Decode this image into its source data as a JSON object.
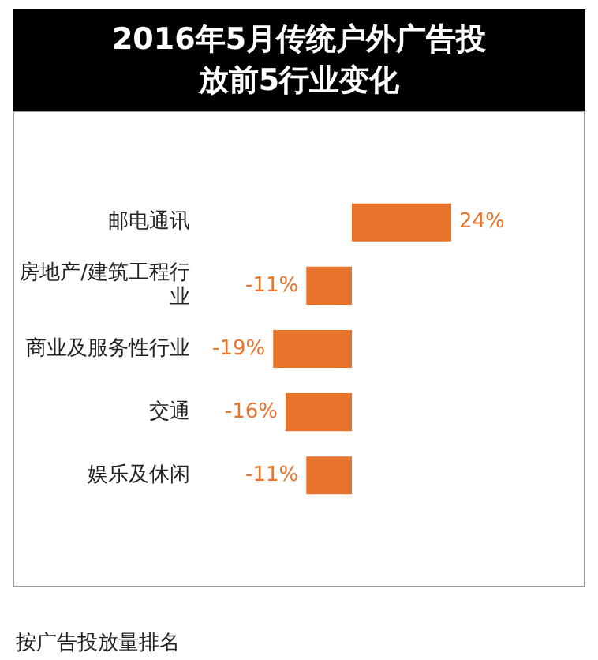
{
  "chart_data": {
    "type": "bar",
    "orientation": "horizontal",
    "title": "2016年5月传统户外广告投放前5行业变化",
    "categories": [
      "邮电通讯",
      "房地产/建筑工程行业",
      "商业及服务性行业",
      "交通",
      "娱乐及休闲"
    ],
    "values": [
      24,
      -11,
      -19,
      -16,
      -11
    ],
    "value_labels": [
      "24%",
      "-11%",
      "-19%",
      "-16%",
      "-11%"
    ],
    "color": "#e8732a",
    "legend": false,
    "tick_labels": "y",
    "annotations": [
      "按广告投放量排名"
    ]
  }
}
